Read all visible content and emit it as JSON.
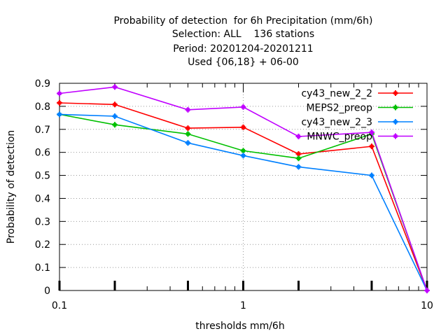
{
  "chart_data": {
    "type": "line",
    "title_lines": [
      "Probability of detection  for 6h Precipitation (mm/6h)",
      "Selection: ALL    136 stations",
      "Period: 20201204-20201211",
      "Used {06,18} + 06-00"
    ],
    "xlabel": "thresholds mm/6h",
    "ylabel": "Probability of detection",
    "x_scale": "log",
    "xlim": [
      0.1,
      10
    ],
    "ylim": [
      0,
      0.9
    ],
    "x_tick_labels": [
      "0.1",
      "1",
      "10"
    ],
    "y_tick_labels": [
      "0",
      "0.1",
      "0.2",
      "0.3",
      "0.4",
      "0.5",
      "0.6",
      "0.7",
      "0.8",
      "0.9"
    ],
    "grid": true,
    "legend_position": "top-right",
    "x": [
      0.1,
      0.2,
      0.5,
      1,
      2,
      5,
      10
    ],
    "series": [
      {
        "name": "cy43_new_2_2",
        "color": "#ff0000",
        "values": [
          0.815,
          0.808,
          0.705,
          0.709,
          0.593,
          0.626,
          0.0
        ]
      },
      {
        "name": "MEPS2_preop",
        "color": "#00c000",
        "values": [
          0.765,
          0.72,
          0.68,
          0.607,
          0.574,
          0.68,
          0.0
        ]
      },
      {
        "name": "cy43_new_2_3",
        "color": "#0080ff",
        "values": [
          0.765,
          0.757,
          0.641,
          0.586,
          0.537,
          0.5,
          0.0
        ]
      },
      {
        "name": "MNWC_preop",
        "color": "#c000ff",
        "values": [
          0.856,
          0.884,
          0.785,
          0.797,
          0.669,
          0.687,
          0.0
        ]
      }
    ]
  }
}
